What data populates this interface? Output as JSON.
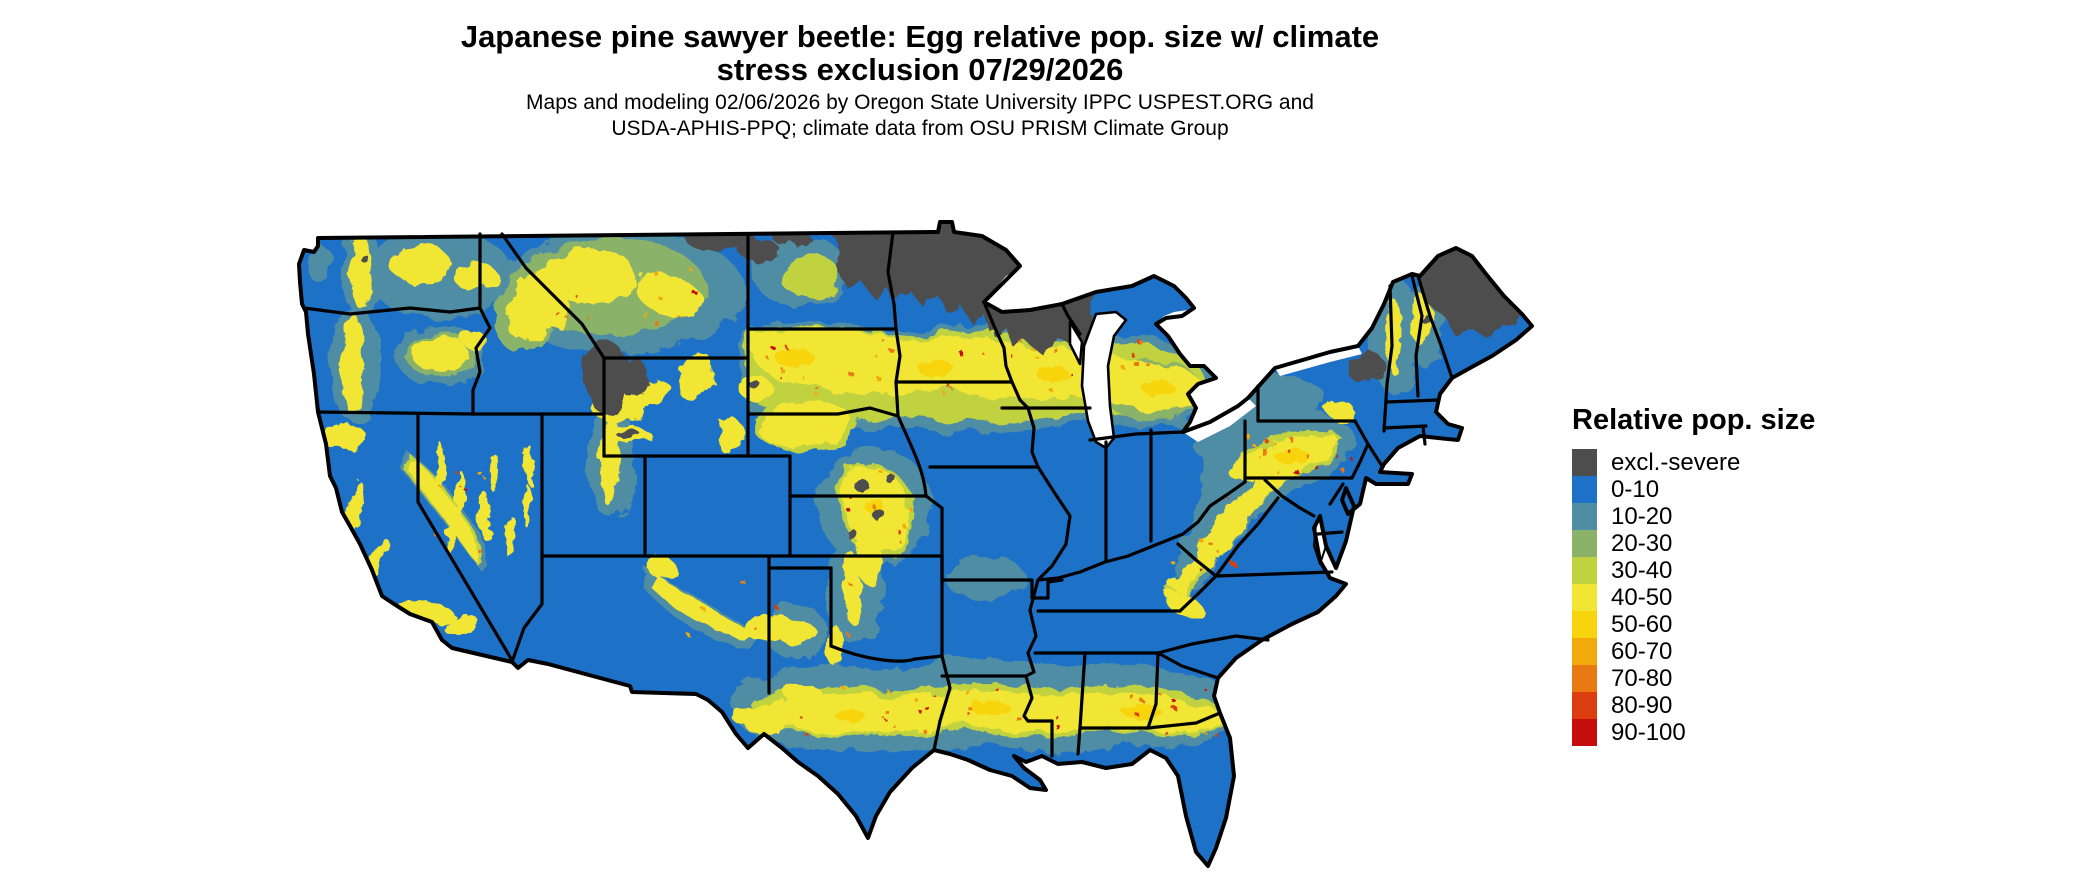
{
  "title": {
    "line1": "Japanese pine sawyer beetle: Egg relative pop. size w/ climate",
    "line2": "stress exclusion 07/29/2026"
  },
  "subtitle": {
    "line1": "Maps and modeling 02/06/2026 by Oregon State University IPPC USPEST.ORG and",
    "line2": "USDA-APHIS-PPQ; climate data from OSU PRISM Climate Group"
  },
  "legend": {
    "title": "Relative pop. size",
    "items": [
      {
        "key": "excl",
        "label": "excl.-severe",
        "color": "#4d4d4d"
      },
      {
        "key": "0",
        "label": "0-10",
        "color": "#1d72c8"
      },
      {
        "key": "10",
        "label": "10-20",
        "color": "#4f8da4"
      },
      {
        "key": "20",
        "label": "20-30",
        "color": "#8ab369"
      },
      {
        "key": "30",
        "label": "30-40",
        "color": "#c1d23f"
      },
      {
        "key": "40",
        "label": "40-50",
        "color": "#f2e635"
      },
      {
        "key": "50",
        "label": "50-60",
        "color": "#f8d40e"
      },
      {
        "key": "60",
        "label": "60-70",
        "color": "#f2a90c"
      },
      {
        "key": "70",
        "label": "70-80",
        "color": "#e97912"
      },
      {
        "key": "80",
        "label": "80-90",
        "color": "#dc3d10"
      },
      {
        "key": "90",
        "label": "90-100",
        "color": "#c50c0e"
      }
    ]
  }
}
